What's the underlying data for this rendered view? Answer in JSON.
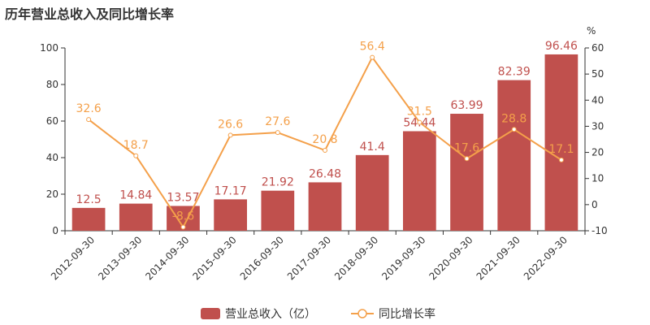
{
  "chart_data": {
    "type": "bar",
    "title": "历年营业总收入及同比增长率",
    "categories": [
      "2012-09-30",
      "2013-09-30",
      "2014-09-30",
      "2015-09-30",
      "2016-09-30",
      "2017-09-30",
      "2018-09-30",
      "2019-09-30",
      "2020-09-30",
      "2021-09-30",
      "2022-09-30"
    ],
    "series": [
      {
        "name": "营业总收入（亿）",
        "type": "bar",
        "axis": "left",
        "color": "#c0504d",
        "values": [
          12.5,
          14.84,
          13.57,
          17.17,
          21.92,
          26.48,
          41.4,
          54.44,
          63.99,
          82.39,
          96.46
        ]
      },
      {
        "name": "同比增长率",
        "type": "line",
        "axis": "right",
        "color": "#f4a04a",
        "values": [
          32.6,
          18.7,
          -8.6,
          26.6,
          27.6,
          20.8,
          56.4,
          31.5,
          17.6,
          28.8,
          17.1
        ]
      }
    ],
    "ylim_left": [
      0,
      100
    ],
    "yticks_left": [
      0,
      20,
      40,
      60,
      80,
      100
    ],
    "ylim_right": [
      -10,
      60
    ],
    "yticks_right": [
      -10,
      0,
      10,
      20,
      30,
      40,
      50,
      60
    ],
    "ylabel_right": "%",
    "legend_position": "bottom-center",
    "grid": false
  }
}
